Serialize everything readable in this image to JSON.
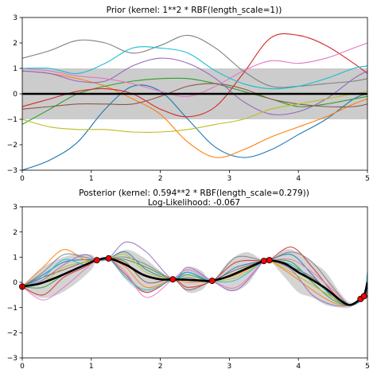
{
  "chart_data": [
    {
      "type": "line",
      "title": "Prior (kernel:  1**2 * RBF(length_scale=1))",
      "xlim": [
        0,
        5
      ],
      "ylim": [
        -3,
        3
      ],
      "xticks": [
        "0",
        "1",
        "2",
        "3",
        "4",
        "5"
      ],
      "yticks": [
        "3",
        "2",
        "1",
        "0",
        "−1",
        "−2",
        "−3"
      ],
      "mean": {
        "x": [
          0,
          5
        ],
        "y": [
          0,
          0
        ]
      },
      "band": {
        "x": [
          0,
          5
        ],
        "lower": [
          -1,
          -1
        ],
        "upper": [
          1,
          1
        ],
        "color": "#cccccc"
      },
      "samples": [
        {
          "color": "#1f77b4",
          "x": [
            0,
            0.4,
            0.8,
            1.2,
            1.6,
            2.0,
            2.4,
            2.8,
            3.2,
            3.6,
            4.0,
            4.4,
            4.8,
            5.0
          ],
          "y": [
            -3.0,
            -2.6,
            -1.9,
            -0.6,
            0.3,
            0.1,
            -1.0,
            -2.1,
            -2.5,
            -2.2,
            -1.6,
            -1.0,
            -0.2,
            0.0
          ]
        },
        {
          "color": "#ff7f0e",
          "x": [
            0,
            0.4,
            0.8,
            1.2,
            1.6,
            2.0,
            2.4,
            2.8,
            3.2,
            3.6,
            4.0,
            4.4,
            4.8,
            5.0
          ],
          "y": [
            0.9,
            0.8,
            0.6,
            0.3,
            -0.2,
            -0.8,
            -1.9,
            -2.5,
            -2.2,
            -1.7,
            -1.3,
            -0.9,
            -0.4,
            -0.2
          ]
        },
        {
          "color": "#2ca02c",
          "x": [
            0,
            0.4,
            0.8,
            1.2,
            1.6,
            2.0,
            2.4,
            2.8,
            3.2,
            3.6,
            4.0,
            4.4,
            4.8,
            5.0
          ],
          "y": [
            -1.2,
            -0.6,
            0.0,
            0.3,
            0.5,
            0.6,
            0.6,
            0.4,
            0.1,
            -0.2,
            -0.5,
            -0.4,
            -0.2,
            -0.1
          ]
        },
        {
          "color": "#d62728",
          "x": [
            0,
            0.4,
            0.8,
            1.2,
            1.6,
            2.0,
            2.4,
            2.8,
            3.2,
            3.6,
            4.0,
            4.4,
            4.8,
            5.0
          ],
          "y": [
            -0.5,
            -0.2,
            0.1,
            0.2,
            0.0,
            -0.6,
            -0.9,
            -0.5,
            0.8,
            2.2,
            2.3,
            1.9,
            1.2,
            0.8
          ]
        },
        {
          "color": "#9467bd",
          "x": [
            0,
            0.4,
            0.8,
            1.2,
            1.6,
            2.0,
            2.4,
            2.8,
            3.2,
            3.6,
            4.0,
            4.4,
            4.8,
            5.0
          ],
          "y": [
            0.9,
            0.8,
            0.5,
            0.5,
            1.1,
            1.4,
            1.2,
            0.6,
            -0.3,
            -0.8,
            -0.7,
            -0.2,
            0.6,
            0.9
          ]
        },
        {
          "color": "#8c564b",
          "x": [
            0,
            0.4,
            0.8,
            1.2,
            1.6,
            2.0,
            2.4,
            2.8,
            3.2,
            3.6,
            4.0,
            4.4,
            4.8,
            5.0
          ],
          "y": [
            -0.6,
            -0.5,
            -0.4,
            -0.4,
            -0.4,
            -0.1,
            0.3,
            0.4,
            0.2,
            -0.2,
            -0.4,
            -0.5,
            -0.5,
            -0.4
          ]
        },
        {
          "color": "#e377c2",
          "x": [
            0,
            0.4,
            0.8,
            1.2,
            1.6,
            2.0,
            2.4,
            2.8,
            3.2,
            3.6,
            4.0,
            4.4,
            4.8,
            5.0
          ],
          "y": [
            1.0,
            0.9,
            0.7,
            0.6,
            0.4,
            0.1,
            -0.1,
            0.3,
            0.9,
            1.3,
            1.2,
            1.4,
            1.8,
            2.0
          ]
        },
        {
          "color": "#7f7f7f",
          "x": [
            0,
            0.4,
            0.8,
            1.2,
            1.6,
            2.0,
            2.4,
            2.8,
            3.2,
            3.6,
            4.0,
            4.4,
            4.8,
            5.0
          ],
          "y": [
            1.4,
            1.7,
            2.1,
            2.0,
            1.6,
            1.9,
            2.3,
            1.8,
            0.9,
            0.3,
            0.3,
            0.4,
            0.5,
            0.6
          ]
        },
        {
          "color": "#bcbd22",
          "x": [
            0,
            0.4,
            0.8,
            1.2,
            1.6,
            2.0,
            2.4,
            2.8,
            3.2,
            3.6,
            4.0,
            4.4,
            4.8,
            5.0
          ],
          "y": [
            -1.0,
            -1.3,
            -1.4,
            -1.4,
            -1.5,
            -1.5,
            -1.4,
            -1.2,
            -1.0,
            -0.6,
            -0.4,
            -0.2,
            0.0,
            0.1
          ]
        },
        {
          "color": "#17becf",
          "x": [
            0,
            0.4,
            0.8,
            1.2,
            1.6,
            2.0,
            2.4,
            2.8,
            3.2,
            3.6,
            4.0,
            4.4,
            4.8,
            5.0
          ],
          "y": [
            1.0,
            1.0,
            0.8,
            1.2,
            1.8,
            1.8,
            1.6,
            0.9,
            0.4,
            0.2,
            0.3,
            0.6,
            1.0,
            1.1
          ]
        }
      ]
    },
    {
      "type": "line",
      "title": "Posterior (kernel: 0.594**2 * RBF(length_scale=0.279))",
      "subtitle": "Log-Likelihood: -0.067",
      "xlim": [
        0,
        5
      ],
      "ylim": [
        -3,
        3
      ],
      "xticks": [
        "0",
        "1",
        "2",
        "3",
        "4",
        "5"
      ],
      "yticks": [
        "3",
        "2",
        "1",
        "0",
        "−1",
        "−2",
        "−3"
      ],
      "observations": {
        "x": [
          0.0,
          1.08,
          1.25,
          2.18,
          2.75,
          3.5,
          3.58,
          4.9,
          4.95
        ],
        "y": [
          -0.17,
          0.88,
          0.95,
          0.12,
          0.06,
          0.85,
          0.88,
          -0.66,
          -0.55
        ],
        "color": "#ff0000"
      },
      "mean": {
        "x": [
          0,
          0.25,
          0.5,
          0.75,
          1.0,
          1.08,
          1.25,
          1.5,
          1.75,
          2.0,
          2.18,
          2.4,
          2.6,
          2.75,
          3.0,
          3.25,
          3.5,
          3.58,
          3.8,
          4.0,
          4.2,
          4.4,
          4.6,
          4.75,
          4.9,
          4.95,
          5.0
        ],
        "y": [
          -0.17,
          -0.05,
          0.2,
          0.5,
          0.8,
          0.88,
          0.95,
          0.7,
          0.3,
          0.12,
          0.12,
          0.1,
          0.07,
          0.06,
          0.25,
          0.55,
          0.85,
          0.88,
          0.75,
          0.4,
          0.1,
          -0.25,
          -0.7,
          -0.9,
          -0.66,
          -0.55,
          0.0
        ]
      },
      "band": {
        "x": [
          0,
          0.25,
          0.5,
          0.75,
          1.0,
          1.08,
          1.25,
          1.5,
          1.75,
          2.0,
          2.18,
          2.4,
          2.6,
          2.75,
          3.0,
          3.25,
          3.5,
          3.58,
          3.8,
          4.0,
          4.2,
          4.4,
          4.6,
          4.75,
          4.9,
          4.95,
          5.0
        ],
        "lower": [
          -0.17,
          -0.6,
          -0.5,
          -0.1,
          0.5,
          0.88,
          0.95,
          0.1,
          -0.4,
          -0.2,
          0.12,
          -0.4,
          -0.3,
          0.06,
          -0.35,
          -0.1,
          0.85,
          0.88,
          0.2,
          -0.4,
          -0.6,
          -0.9,
          -1.0,
          -1.0,
          -0.66,
          -0.55,
          -0.6
        ],
        "upper": [
          -0.17,
          0.5,
          0.9,
          1.1,
          1.1,
          0.88,
          0.95,
          1.3,
          1.0,
          0.45,
          0.12,
          0.6,
          0.45,
          0.06,
          0.85,
          1.2,
          0.85,
          0.88,
          1.3,
          1.2,
          0.8,
          0.4,
          -0.4,
          -0.8,
          -0.66,
          -0.55,
          0.6
        ],
        "color": "#cccccc"
      },
      "samples": [
        {
          "color": "#1f77b4",
          "x": [
            0,
            0.3,
            0.6,
            0.9,
            1.08,
            1.25,
            1.5,
            1.8,
            2.18,
            2.4,
            2.75,
            3.1,
            3.5,
            3.58,
            3.9,
            4.2,
            4.5,
            4.75,
            4.95,
            5.0
          ],
          "y": [
            -0.17,
            0.3,
            0.8,
            0.9,
            0.88,
            0.95,
            1.2,
            0.5,
            0.12,
            0.4,
            0.06,
            0.6,
            0.85,
            0.88,
            1.1,
            0.3,
            -0.6,
            -0.9,
            -0.55,
            -0.3
          ]
        },
        {
          "color": "#ff7f0e",
          "x": [
            0,
            0.3,
            0.6,
            0.9,
            1.08,
            1.25,
            1.5,
            1.8,
            2.18,
            2.4,
            2.75,
            3.1,
            3.5,
            3.58,
            3.9,
            4.2,
            4.5,
            4.75,
            4.95,
            5.0
          ],
          "y": [
            -0.17,
            0.6,
            1.3,
            0.9,
            0.88,
            0.95,
            0.6,
            -0.2,
            0.12,
            0.0,
            0.06,
            0.3,
            0.85,
            0.88,
            0.3,
            -0.3,
            -0.8,
            -0.9,
            -0.55,
            -0.1
          ]
        },
        {
          "color": "#2ca02c",
          "x": [
            0,
            0.3,
            0.6,
            0.9,
            1.08,
            1.25,
            1.5,
            1.8,
            2.18,
            2.4,
            2.75,
            3.1,
            3.5,
            3.58,
            3.9,
            4.2,
            4.5,
            4.75,
            4.95,
            5.0
          ],
          "y": [
            -0.17,
            -0.2,
            0.3,
            0.7,
            0.88,
            0.95,
            0.9,
            0.6,
            0.12,
            0.3,
            0.06,
            0.4,
            0.85,
            0.88,
            0.8,
            0.0,
            -0.7,
            -0.9,
            -0.55,
            0.1
          ]
        },
        {
          "color": "#d62728",
          "x": [
            0,
            0.3,
            0.6,
            0.9,
            1.08,
            1.25,
            1.5,
            1.8,
            2.18,
            2.4,
            2.75,
            3.1,
            3.5,
            3.58,
            3.9,
            4.2,
            4.5,
            4.75,
            4.95,
            5.0
          ],
          "y": [
            -0.17,
            -0.5,
            0.2,
            0.6,
            0.88,
            0.95,
            0.3,
            -0.4,
            0.12,
            -0.2,
            0.06,
            0.8,
            0.85,
            0.88,
            1.4,
            0.6,
            -0.4,
            -0.9,
            -0.55,
            0.3
          ]
        },
        {
          "color": "#9467bd",
          "x": [
            0,
            0.3,
            0.6,
            0.9,
            1.08,
            1.25,
            1.5,
            1.8,
            2.18,
            2.4,
            2.75,
            3.1,
            3.5,
            3.58,
            3.9,
            4.2,
            4.5,
            4.75,
            4.95,
            5.0
          ],
          "y": [
            -0.17,
            0.1,
            0.7,
            1.1,
            0.88,
            0.95,
            1.6,
            1.2,
            0.12,
            0.6,
            0.06,
            -0.3,
            0.85,
            0.88,
            0.5,
            -0.5,
            -0.9,
            -0.9,
            -0.55,
            -0.4
          ]
        },
        {
          "color": "#8c564b",
          "x": [
            0,
            0.3,
            0.6,
            0.9,
            1.08,
            1.25,
            1.5,
            1.8,
            2.18,
            2.4,
            2.75,
            3.1,
            3.5,
            3.58,
            3.9,
            4.2,
            4.5,
            4.75,
            4.95,
            5.0
          ],
          "y": [
            -0.17,
            0.2,
            0.5,
            0.8,
            0.88,
            0.95,
            0.8,
            0.0,
            0.12,
            -0.3,
            0.06,
            0.5,
            0.85,
            0.88,
            0.6,
            0.2,
            -0.5,
            -0.9,
            -0.55,
            0.0
          ]
        },
        {
          "color": "#e377c2",
          "x": [
            0,
            0.3,
            0.6,
            0.9,
            1.08,
            1.25,
            1.5,
            1.8,
            2.18,
            2.4,
            2.75,
            3.1,
            3.5,
            3.58,
            3.9,
            4.2,
            4.5,
            4.75,
            4.95,
            5.0
          ],
          "y": [
            -0.17,
            -0.7,
            -0.2,
            0.5,
            0.88,
            0.95,
            0.4,
            -0.6,
            0.12,
            0.5,
            0.06,
            -0.2,
            0.85,
            0.88,
            0.9,
            0.4,
            -0.3,
            -0.9,
            -0.55,
            0.2
          ]
        },
        {
          "color": "#7f7f7f",
          "x": [
            0,
            0.3,
            0.6,
            0.9,
            1.08,
            1.25,
            1.5,
            1.8,
            2.18,
            2.4,
            2.75,
            3.1,
            3.5,
            3.58,
            3.9,
            4.2,
            4.5,
            4.75,
            4.95,
            5.0
          ],
          "y": [
            -0.17,
            0.4,
            1.1,
            1.0,
            0.88,
            0.95,
            1.0,
            0.7,
            0.12,
            0.2,
            0.06,
            1.0,
            0.85,
            0.88,
            1.2,
            0.8,
            -0.2,
            -0.9,
            -0.55,
            -0.2
          ]
        },
        {
          "color": "#bcbd22",
          "x": [
            0,
            0.3,
            0.6,
            0.9,
            1.08,
            1.25,
            1.5,
            1.8,
            2.18,
            2.4,
            2.75,
            3.1,
            3.5,
            3.58,
            3.9,
            4.2,
            4.5,
            4.75,
            4.95,
            5.0
          ],
          "y": [
            -0.17,
            0.0,
            0.6,
            0.8,
            0.88,
            0.95,
            1.1,
            0.4,
            0.12,
            0.1,
            0.06,
            0.2,
            0.85,
            0.88,
            0.4,
            -0.1,
            -0.6,
            -0.9,
            -0.55,
            -0.6
          ]
        },
        {
          "color": "#17becf",
          "x": [
            0,
            0.3,
            0.6,
            0.9,
            1.08,
            1.25,
            1.5,
            1.8,
            2.18,
            2.4,
            2.75,
            3.1,
            3.5,
            3.58,
            3.9,
            4.2,
            4.5,
            4.75,
            4.95,
            5.0
          ],
          "y": [
            -0.17,
            0.2,
            0.9,
            0.7,
            0.88,
            0.95,
            0.2,
            -0.3,
            0.12,
            0.4,
            0.06,
            0.1,
            0.85,
            0.88,
            0.7,
            0.1,
            -0.5,
            -0.9,
            -0.55,
            0.4
          ]
        }
      ]
    }
  ]
}
